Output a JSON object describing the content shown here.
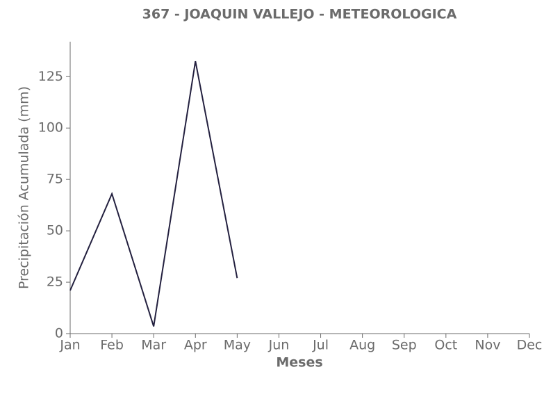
{
  "chart_data": {
    "type": "line",
    "title": "367 - JOAQUIN VALLEJO - METEOROLOGICA",
    "x_label": "Meses",
    "y_label": "Precipitación Acumulada (mm)",
    "categories": [
      "Jan",
      "Feb",
      "Mar",
      "Apr",
      "May",
      "Jun",
      "Jul",
      "Aug",
      "Sep",
      "Oct",
      "Nov",
      "Dec"
    ],
    "series": [
      {
        "color": "#23203f",
        "values": [
          21,
          68,
          3.5,
          132.5,
          27,
          null,
          null,
          null,
          null,
          null,
          null,
          null
        ]
      }
    ],
    "ylim": [
      0,
      142
    ],
    "yticks": [
      0,
      25,
      50,
      75,
      100,
      125
    ],
    "grid": false
  }
}
